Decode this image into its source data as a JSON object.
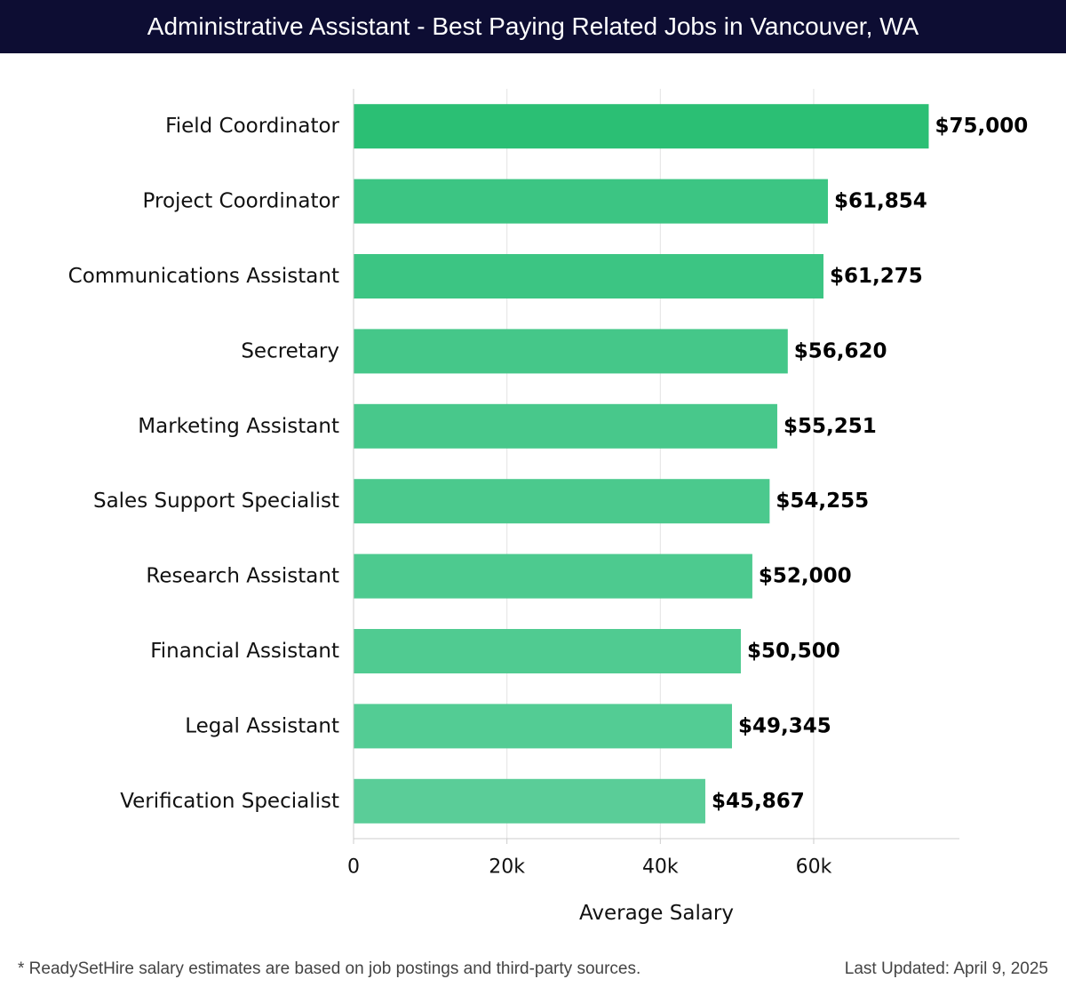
{
  "header": {
    "title": "Administrative Assistant - Best Paying Related Jobs in Vancouver, WA"
  },
  "chart_data": {
    "type": "bar",
    "orientation": "horizontal",
    "categories": [
      "Field Coordinator",
      "Project Coordinator",
      "Communications Assistant",
      "Secretary",
      "Marketing Assistant",
      "Sales Support Specialist",
      "Research Assistant",
      "Financial Assistant",
      "Legal Assistant",
      "Verification Specialist"
    ],
    "values": [
      75000,
      61854,
      61275,
      56620,
      55251,
      54255,
      52000,
      50500,
      49345,
      45867
    ],
    "value_labels": [
      "$75,000",
      "$61,854",
      "$61,275",
      "$56,620",
      "$55,251",
      "$54,255",
      "$52,000",
      "$50,500",
      "$49,345",
      "$45,867"
    ],
    "xlabel": "Average Salary",
    "x_ticks": [
      0,
      20000,
      40000,
      60000
    ],
    "x_tick_labels": [
      "0",
      "20k",
      "40k",
      "60k"
    ],
    "xlim": [
      0,
      79000
    ],
    "grid": true,
    "bar_colors": [
      "#2bbf74",
      "#3cc583",
      "#3cc583",
      "#45c789",
      "#48c88b",
      "#4bc98d",
      "#4dca8f",
      "#50cb91",
      "#53cc94",
      "#5acd98"
    ]
  },
  "footer": {
    "note": "* ReadySetHire salary estimates are based on job postings and third-party sources.",
    "updated": "Last Updated: April 9, 2025"
  }
}
